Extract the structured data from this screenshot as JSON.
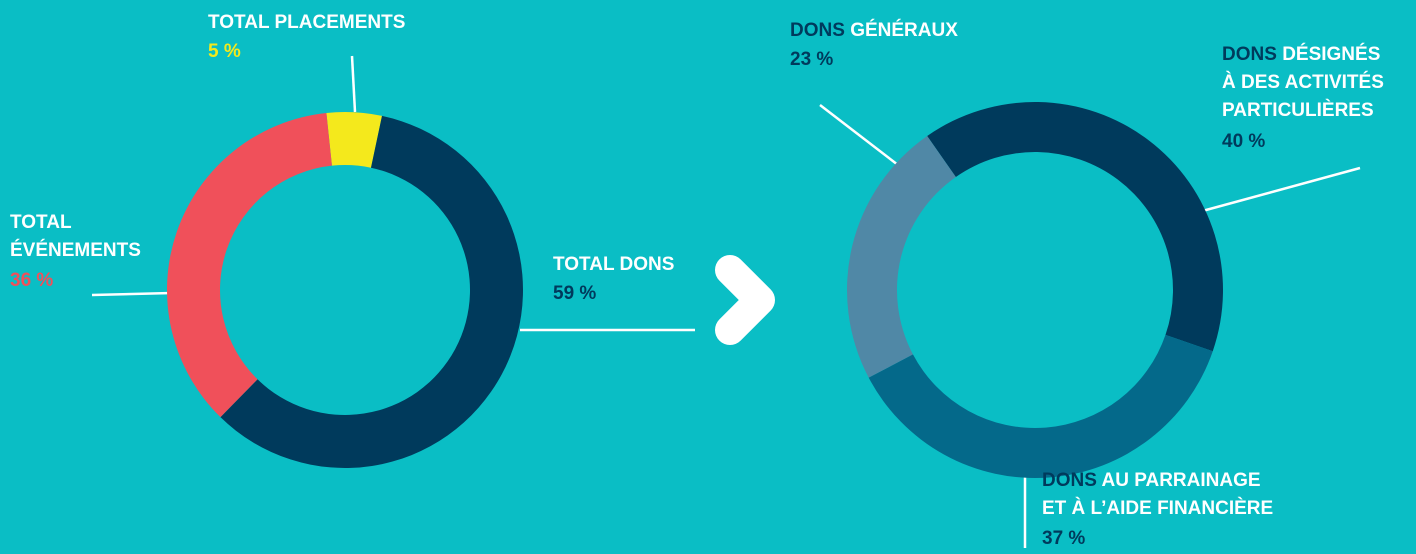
{
  "chart_data": [
    {
      "type": "pie",
      "categories": [
        [
          "TOTAL PLACEMENTS"
        ],
        [
          "TOTAL DONS"
        ],
        [
          "TOTAL",
          "ÉVÉNEMENTS"
        ]
      ],
      "category_colors": [
        [
          "#ffffff"
        ],
        [
          "#ffffff",
          "#003a5c"
        ],
        [
          "#ffffff",
          "#ffffff"
        ]
      ],
      "values": [
        5,
        59,
        36
      ],
      "value_labels": [
        "5 %",
        "59 %",
        "36 %"
      ],
      "colors": [
        "#f4e91c",
        "#003a5c",
        "#f0505a"
      ],
      "value_label_colors": [
        "#f4e91c",
        "#003a5c",
        "#f0505a"
      ]
    },
    {
      "type": "pie",
      "categories": [
        [
          "DONS",
          "DÉSIGNÉS",
          "À DES ACTIVITÉS",
          "PARTICULIÈRES"
        ],
        [
          "DONS",
          "AU PARRAINAGE",
          "ET À L’AIDE FINANCIÈRE"
        ],
        [
          "DONS",
          "GÉNÉRAUX"
        ]
      ],
      "category_colors": [
        [
          "#003a5c",
          "#ffffff",
          "#ffffff",
          "#ffffff"
        ],
        [
          "#003a5c",
          "#ffffff",
          "#ffffff"
        ],
        [
          "#003a5c",
          "#ffffff"
        ]
      ],
      "values": [
        40,
        37,
        23
      ],
      "value_labels": [
        "40 %",
        "37 %",
        "23 %"
      ],
      "colors": [
        "#003a5c",
        "#04698a",
        "#5088a6"
      ],
      "value_label_colors": [
        "#003a5c",
        "#003a5c",
        "#003a5c"
      ]
    }
  ]
}
